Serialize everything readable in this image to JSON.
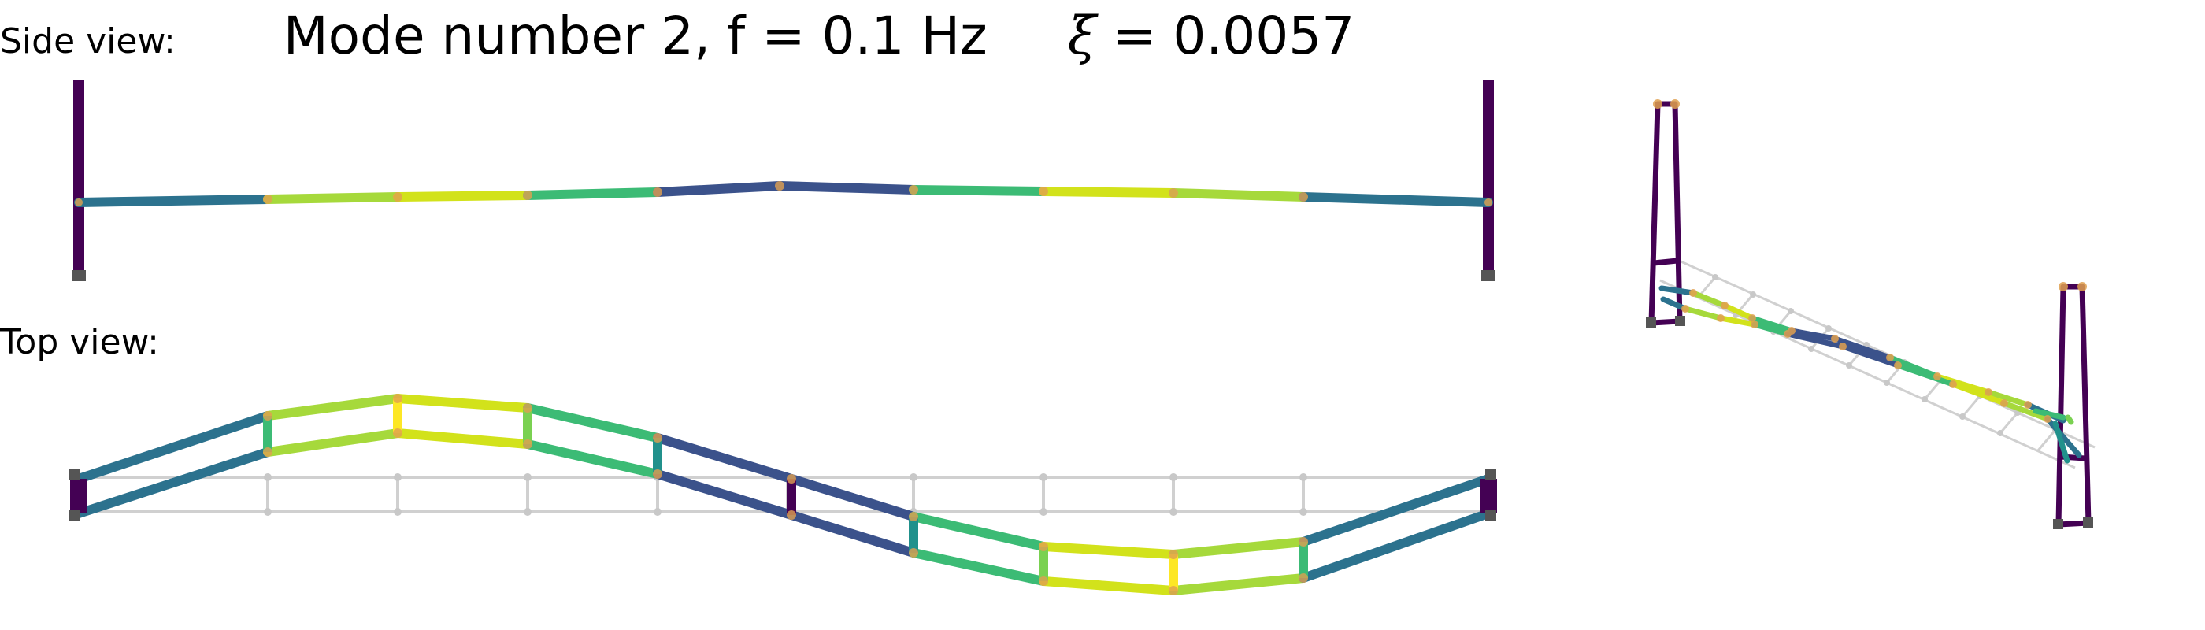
{
  "figure": {
    "title_prefix": "Mode number 2, f = 0.1 Hz",
    "xi_symbol": "ξ",
    "xi_expression": " = 0.0057",
    "side_view_label": "Side view:",
    "top_view_label": "Top view:"
  },
  "colors": {
    "pylon": "#440154",
    "undeformed_grid": "#d0d0d0",
    "node": "#e0a050",
    "support": "#555555"
  }
}
